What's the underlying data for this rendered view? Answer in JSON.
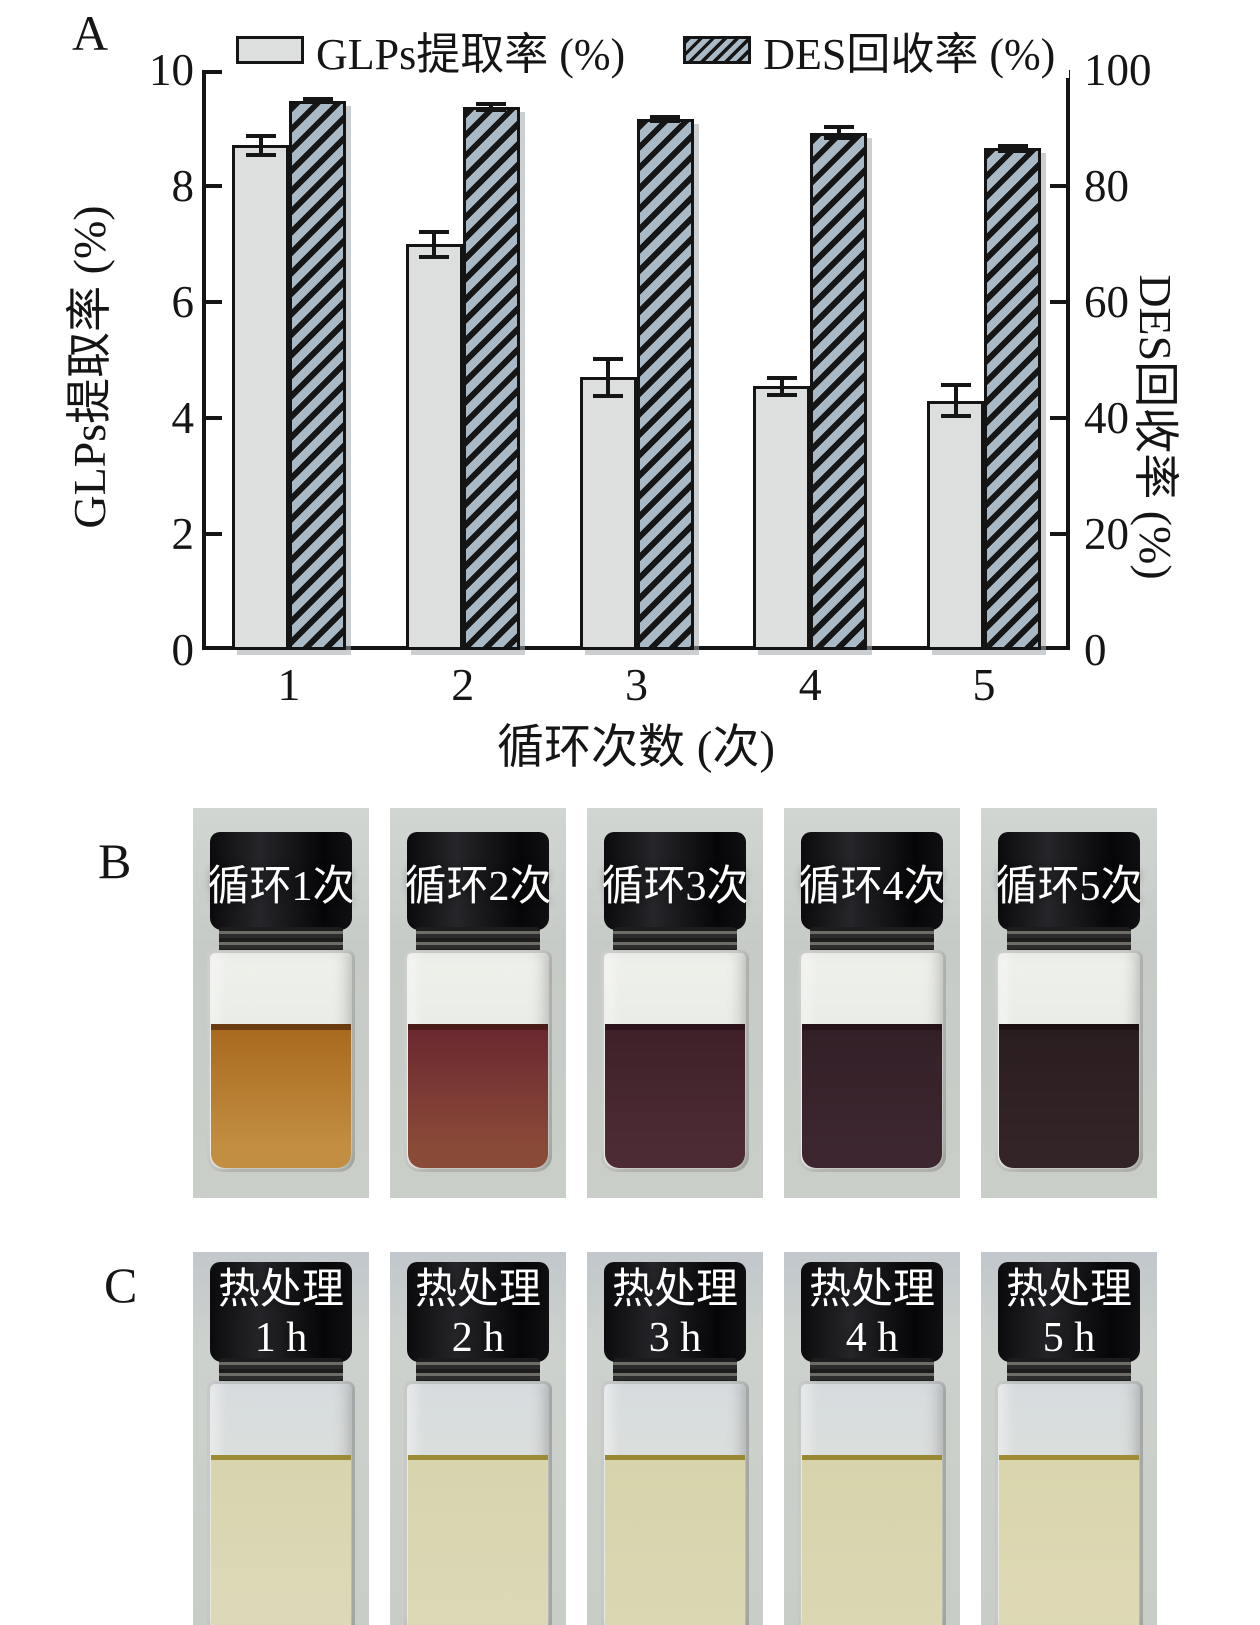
{
  "panel_a": {
    "label": "A",
    "chart_data": {
      "type": "bar",
      "title": "",
      "categories": [
        "1",
        "2",
        "3",
        "4",
        "5"
      ],
      "xlabel": "循环次数 (次)",
      "series": [
        {
          "name": "GLPs提取率 (%)",
          "axis": "left",
          "pattern": "solid",
          "fill": "#dcdfde",
          "values": [
            8.7,
            7.0,
            4.7,
            4.55,
            4.3
          ],
          "errors": [
            0.2,
            0.25,
            0.35,
            0.18,
            0.3
          ]
        },
        {
          "name": "DES回收率 (%)",
          "axis": "right",
          "pattern": "hatched",
          "fill": "#a9b9c5",
          "values": [
            94.7,
            93.6,
            91.6,
            89.2,
            86.5
          ],
          "errors": [
            0.6,
            0.8,
            0.7,
            1.3,
            0.8
          ]
        }
      ],
      "left_axis": {
        "label": "GLPs提取率 (%)",
        "range": [
          0,
          10
        ],
        "ticks": [
          "0",
          "2",
          "4",
          "6",
          "8",
          "10"
        ]
      },
      "right_axis": {
        "label": "DES回收率 (%)",
        "range": [
          0,
          100
        ],
        "ticks": [
          "0",
          "20",
          "40",
          "60",
          "80",
          "100"
        ]
      },
      "legend_position": "top",
      "grid": false
    }
  },
  "panel_b": {
    "label": "B",
    "vials": [
      {
        "caption": "循环1次",
        "liquid_top": "#a96a1e",
        "liquid_bottom": "#c28e42",
        "meniscus": "#6b3c12"
      },
      {
        "caption": "循环2次",
        "liquid_top": "#6b2830",
        "liquid_bottom": "#8a4a38",
        "meniscus": "#491c18"
      },
      {
        "caption": "循环3次",
        "liquid_top": "#3f2029",
        "liquid_bottom": "#4c2b34",
        "meniscus": "#2d141c"
      },
      {
        "caption": "循环4次",
        "liquid_top": "#332027",
        "liquid_bottom": "#3d2630",
        "meniscus": "#241218"
      },
      {
        "caption": "循环5次",
        "liquid_top": "#2a1d20",
        "liquid_bottom": "#332427",
        "meniscus": "#1c1013"
      }
    ]
  },
  "panel_c": {
    "label": "C",
    "vials": [
      {
        "caption_line1": "热处理",
        "caption_line2": "1 h",
        "liquid": "#d8d4ae",
        "liquid_bottom": "#ddd9b8",
        "meniscus": "#9d8a35"
      },
      {
        "caption_line1": "热处理",
        "caption_line2": "2 h",
        "liquid": "#d8d4ae",
        "liquid_bottom": "#dcd8b6",
        "meniscus": "#9d8a35"
      },
      {
        "caption_line1": "热处理",
        "caption_line2": "3 h",
        "liquid": "#d7d3ab",
        "liquid_bottom": "#dbd7b3",
        "meniscus": "#9a8733"
      },
      {
        "caption_line1": "热处理",
        "caption_line2": "4 h",
        "liquid": "#d7d3ab",
        "liquid_bottom": "#dbd7b3",
        "meniscus": "#9a8733"
      },
      {
        "caption_line1": "热处理",
        "caption_line2": "5 h",
        "liquid": "#d9d5ad",
        "liquid_bottom": "#ded9b5",
        "meniscus": "#a08c36"
      }
    ]
  }
}
